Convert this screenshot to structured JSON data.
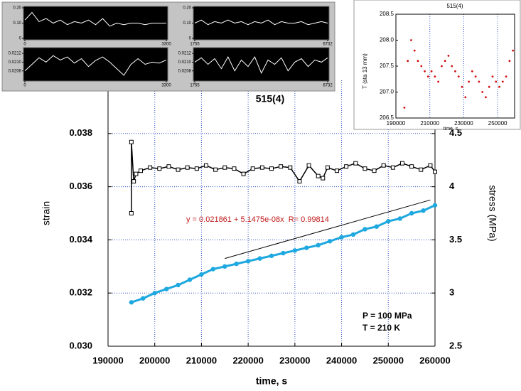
{
  "chart_data": [
    {
      "type": "line",
      "title": "515(4)",
      "xlabel": "time, s",
      "ylabel": "strain",
      "y2label": "stress (MPa)",
      "xlim": [
        190000,
        260000
      ],
      "xticks": [
        190000,
        200000,
        210000,
        220000,
        230000,
        240000,
        250000,
        260000
      ],
      "ylim": [
        0.03,
        0.04
      ],
      "yticks": [
        {
          "value": 0.03,
          "label": "0.030"
        },
        0.032,
        0.034,
        0.036,
        0.038
      ],
      "y2lim": [
        2.5,
        5
      ],
      "y2ticks": [
        2.5,
        3,
        3.5,
        4,
        4.5
      ],
      "grid": true,
      "series": [
        {
          "color": "#1ea8e0",
          "marker": "circle",
          "x": [
            195000,
            197500,
            200000,
            202500,
            205000,
            207500,
            210000,
            212500,
            215000,
            217500,
            220000,
            222500,
            225000,
            227500,
            230000,
            232500,
            235000,
            237500,
            240000,
            242500,
            245000,
            247500,
            250000,
            252500,
            255000,
            257500,
            260000
          ],
          "values": [
            0.03165,
            0.0318,
            0.032,
            0.03215,
            0.0323,
            0.0325,
            0.0327,
            0.0329,
            0.033,
            0.0331,
            0.0332,
            0.0333,
            0.0334,
            0.0335,
            0.0336,
            0.0337,
            0.0338,
            0.03395,
            0.0341,
            0.0342,
            0.0344,
            0.0345,
            0.0347,
            0.0348,
            0.035,
            0.0351,
            0.0353
          ]
        },
        {
          "color": "#000000",
          "marker": "square",
          "axis": "y2",
          "x": [
            195000,
            195000,
            195500,
            196000,
            197000,
            199000,
            201000,
            203000,
            205000,
            207000,
            209000,
            211000,
            213000,
            215000,
            217000,
            219000,
            221000,
            223000,
            225000,
            227000,
            229000,
            231000,
            233000,
            235000,
            236000,
            237000,
            239000,
            241000,
            243000,
            245000,
            247000,
            249000,
            251000,
            253000,
            255000,
            257000,
            259000,
            260000
          ],
          "values": [
            3.75,
            4.42,
            4.05,
            4.12,
            4.15,
            4.18,
            4.17,
            4.19,
            4.16,
            4.18,
            4.17,
            4.2,
            4.16,
            4.18,
            4.17,
            4.12,
            4.17,
            4.18,
            4.17,
            4.19,
            4.18,
            4.05,
            4.2,
            4.1,
            4.08,
            4.18,
            4.15,
            4.19,
            4.22,
            4.17,
            4.15,
            4.2,
            4.18,
            4.22,
            4.19,
            4.16,
            4.2,
            4.14
          ]
        }
      ],
      "fit_line": {
        "color": "#000000",
        "x": [
          215000,
          259000
        ],
        "values": [
          0.0333,
          0.0355
        ]
      },
      "annotations": [
        "y = 0.021861 + 5.1475e-08x  R= 0.99814",
        "P = 100 MPa",
        "T = 210 K"
      ]
    },
    {
      "type": "scatter",
      "title": "515(4)",
      "xlabel": "time, s",
      "ylabel": "T (sta 13 mm)",
      "color": "#d01010",
      "grid": true,
      "xlim": [
        190000,
        260000
      ],
      "xticks": [
        190000,
        210000,
        230000,
        250000
      ],
      "ylim": [
        206.5,
        208.5
      ],
      "yticks": [
        206.5,
        {
          "value": 207,
          "label": "207.0"
        },
        207.5,
        {
          "value": 208,
          "label": "208.0"
        },
        208.5
      ],
      "x": [
        195000,
        197000,
        199000,
        201000,
        203000,
        205000,
        207000,
        209000,
        211000,
        213000,
        215000,
        217000,
        219000,
        221000,
        223000,
        225000,
        227000,
        229000,
        231000,
        233000,
        235000,
        237000,
        239000,
        241000,
        243000,
        245000,
        247000,
        249000,
        251000,
        253000,
        255000,
        257000,
        259000
      ],
      "values": [
        206.7,
        207.6,
        208,
        207.8,
        207.6,
        207.5,
        207.4,
        207.3,
        207.4,
        207.3,
        207.2,
        207.5,
        207.6,
        207.7,
        207.5,
        207.4,
        207.3,
        207.1,
        206.9,
        207.2,
        207.4,
        207.3,
        207.2,
        207,
        206.9,
        207.1,
        207.3,
        207.2,
        207.1,
        207.2,
        207.3,
        207.6,
        207.8
      ]
    },
    {
      "type": "line",
      "color": "#ffffff",
      "xlim": [
        0,
        3300
      ],
      "xticks": [
        0,
        3300
      ],
      "ylim": [
        0,
        0.2
      ],
      "yticks": [
        {
          "value": 0.2,
          "label": "0.20"
        },
        {
          "value": 0.1,
          "label": "0.10"
        },
        0
      ],
      "x": [
        0,
        165,
        330,
        495,
        660,
        825,
        990,
        1155,
        1320,
        1485,
        1650,
        1815,
        1980,
        2145,
        2310,
        2475,
        2640,
        2805,
        2970,
        3135,
        3300
      ],
      "values": [
        0.12,
        0.17,
        0.11,
        0.13,
        0.1,
        0.12,
        0.09,
        0.11,
        0.1,
        0.12,
        0.09,
        0.13,
        0.08,
        0.1,
        0.09,
        0.1,
        0.1,
        0.09,
        0.1,
        0.1,
        0.1
      ]
    },
    {
      "type": "line",
      "color": "#ffffff",
      "xlim": [
        1755,
        6732
      ],
      "xticks": [
        1755,
        6732
      ],
      "ylim": [
        0,
        0.2
      ],
      "yticks": [
        {
          "value": 0.2,
          "label": "0.20"
        },
        {
          "value": 0.1,
          "label": "0.10"
        },
        0
      ],
      "x": [
        1755,
        2000,
        2250,
        2500,
        2750,
        3000,
        3250,
        3500,
        3750,
        4000,
        4250,
        4500,
        4750,
        5000,
        5250,
        5500,
        5750,
        6000,
        6250,
        6500,
        6732
      ],
      "values": [
        0.1,
        0.12,
        0.09,
        0.11,
        0.1,
        0.12,
        0.1,
        0.11,
        0.09,
        0.11,
        0.1,
        0.12,
        0.09,
        0.11,
        0.1,
        0.1,
        0.11,
        0.09,
        0.1,
        0.11,
        0.1
      ]
    },
    {
      "type": "line",
      "color": "#ffffff",
      "xlim": [
        0,
        3300
      ],
      "xticks": [
        0,
        3300
      ],
      "ylim": [
        0.0206,
        0.0213
      ],
      "yticks": [
        0.0212,
        {
          "value": 0.021,
          "label": "0.0210"
        },
        0.0208
      ],
      "x": [
        0,
        165,
        330,
        495,
        660,
        825,
        990,
        1155,
        1320,
        1485,
        1650,
        1815,
        1980,
        2145,
        2310,
        2475,
        2640,
        2805,
        2970,
        3135,
        3300
      ],
      "values": [
        0.0208,
        0.02095,
        0.0211,
        0.021,
        0.02115,
        0.02105,
        0.02112,
        0.02098,
        0.02108,
        0.0209,
        0.02104,
        0.02112,
        0.021,
        0.02085,
        0.0207,
        0.02095,
        0.02108,
        0.02095,
        0.021,
        0.02098,
        0.02105
      ]
    },
    {
      "type": "line",
      "color": "#ffffff",
      "xlim": [
        1755,
        6732
      ],
      "xticks": [
        1755,
        6732
      ],
      "ylim": [
        0.0206,
        0.0213
      ],
      "yticks": [
        0.0212,
        {
          "value": 0.021,
          "label": "0.0210"
        },
        0.0208
      ],
      "x": [
        1755,
        2000,
        2250,
        2500,
        2750,
        3000,
        3250,
        3500,
        3750,
        4000,
        4250,
        4500,
        4750,
        5000,
        5250,
        5500,
        5750,
        6000,
        6250,
        6500,
        6732
      ],
      "values": [
        0.021,
        0.0211,
        0.02095,
        0.02108,
        0.02085,
        0.02112,
        0.0208,
        0.02105,
        0.0209,
        0.02112,
        0.02075,
        0.02105,
        0.02095,
        0.0211,
        0.0208,
        0.021,
        0.02108,
        0.0209,
        0.02105,
        0.021,
        0.0211
      ]
    }
  ]
}
